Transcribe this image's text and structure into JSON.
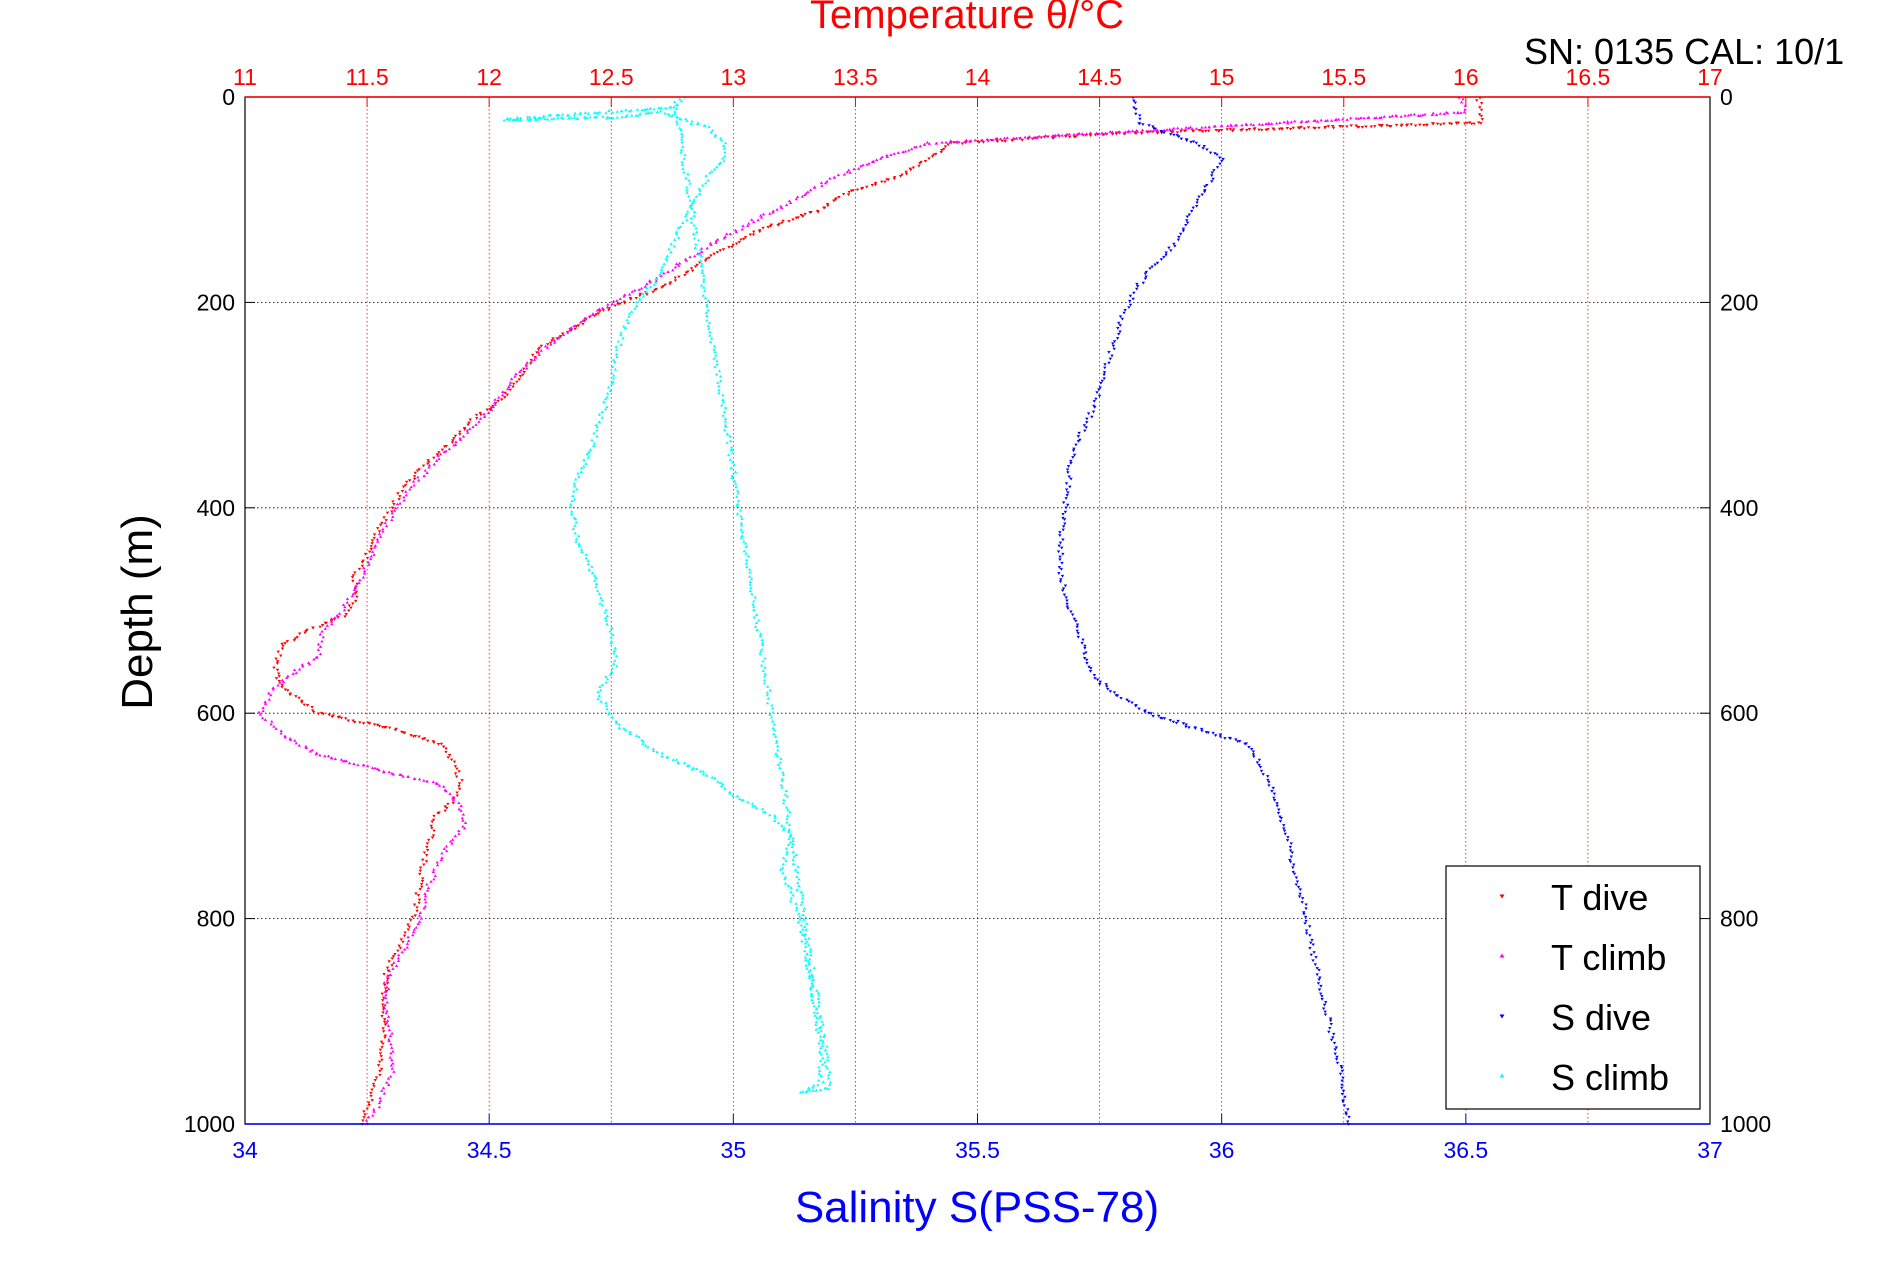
{
  "chart_data": {
    "type": "scatter",
    "title_top_axis": "Temperature θ/°C",
    "top_right_label": "SN: 0135  CAL: 10/1",
    "xlabel_bottom": "Salinity S(PSS-78)",
    "ylabel": "Depth (m)",
    "x_top": {
      "label": "Temperature θ/°C",
      "lim": [
        11,
        17
      ],
      "ticks": [
        "11",
        "11.5",
        "12",
        "12.5",
        "13",
        "13.5",
        "14",
        "14.5",
        "15",
        "15.5",
        "16",
        "16.5",
        "17"
      ]
    },
    "x_bottom": {
      "label": "Salinity S(PSS-78)",
      "lim": [
        34,
        37
      ],
      "ticks": [
        "34",
        "34.5",
        "35",
        "35.5",
        "36",
        "36.5",
        "37"
      ]
    },
    "y": {
      "label": "Depth (m)",
      "lim": [
        0,
        1000
      ],
      "reversed": true,
      "ticks_left": [
        "0",
        "200",
        "400",
        "600",
        "800",
        "1000"
      ],
      "ticks_right": [
        "0",
        "200",
        "400",
        "600",
        "800",
        "1000"
      ]
    },
    "grid": true,
    "legend_position": "bottom-right",
    "series": [
      {
        "name": "T dive",
        "axis": "top",
        "color": "#ff0000",
        "marker": "down-triangle",
        "points": [
          [
            16.05,
            0
          ],
          [
            16.06,
            10
          ],
          [
            16.07,
            25
          ],
          [
            14.6,
            35
          ],
          [
            13.9,
            45
          ],
          [
            13.8,
            60
          ],
          [
            13.7,
            75
          ],
          [
            13.45,
            95
          ],
          [
            13.35,
            110
          ],
          [
            13.1,
            130
          ],
          [
            12.95,
            150
          ],
          [
            12.85,
            165
          ],
          [
            12.75,
            180
          ],
          [
            12.6,
            195
          ],
          [
            12.45,
            210
          ],
          [
            12.35,
            225
          ],
          [
            12.2,
            245
          ],
          [
            12.15,
            265
          ],
          [
            12.1,
            280
          ],
          [
            12.05,
            295
          ],
          [
            11.95,
            310
          ],
          [
            11.85,
            335
          ],
          [
            11.75,
            355
          ],
          [
            11.65,
            380
          ],
          [
            11.6,
            400
          ],
          [
            11.55,
            420
          ],
          [
            11.5,
            445
          ],
          [
            11.45,
            465
          ],
          [
            11.45,
            490
          ],
          [
            11.4,
            505
          ],
          [
            11.25,
            520
          ],
          [
            11.15,
            535
          ],
          [
            11.12,
            555
          ],
          [
            11.15,
            575
          ],
          [
            11.3,
            600
          ],
          [
            11.6,
            615
          ],
          [
            11.8,
            630
          ],
          [
            11.85,
            645
          ],
          [
            11.88,
            665
          ],
          [
            11.86,
            685
          ],
          [
            11.78,
            700
          ],
          [
            11.75,
            730
          ],
          [
            11.72,
            760
          ],
          [
            11.7,
            790
          ],
          [
            11.65,
            820
          ],
          [
            11.58,
            850
          ],
          [
            11.57,
            880
          ],
          [
            11.57,
            910
          ],
          [
            11.56,
            940
          ],
          [
            11.52,
            970
          ],
          [
            11.48,
            1000
          ]
        ]
      },
      {
        "name": "T climb",
        "axis": "top",
        "color": "#ff00ff",
        "marker": "up-triangle",
        "points": [
          [
            15.98,
            0
          ],
          [
            16.0,
            15
          ],
          [
            13.8,
            45
          ],
          [
            13.6,
            60
          ],
          [
            13.4,
            80
          ],
          [
            13.25,
            100
          ],
          [
            13.05,
            125
          ],
          [
            12.9,
            145
          ],
          [
            12.8,
            160
          ],
          [
            12.7,
            175
          ],
          [
            12.55,
            195
          ],
          [
            12.4,
            215
          ],
          [
            12.28,
            235
          ],
          [
            12.18,
            255
          ],
          [
            12.1,
            275
          ],
          [
            12.05,
            290
          ],
          [
            12.0,
            305
          ],
          [
            11.9,
            330
          ],
          [
            11.8,
            350
          ],
          [
            11.7,
            375
          ],
          [
            11.62,
            400
          ],
          [
            11.57,
            420
          ],
          [
            11.52,
            445
          ],
          [
            11.47,
            470
          ],
          [
            11.4,
            500
          ],
          [
            11.32,
            520
          ],
          [
            11.3,
            545
          ],
          [
            11.2,
            560
          ],
          [
            11.12,
            575
          ],
          [
            11.06,
            600
          ],
          [
            11.15,
            620
          ],
          [
            11.3,
            640
          ],
          [
            11.55,
            655
          ],
          [
            11.8,
            670
          ],
          [
            11.88,
            690
          ],
          [
            11.9,
            710
          ],
          [
            11.8,
            740
          ],
          [
            11.75,
            770
          ],
          [
            11.72,
            800
          ],
          [
            11.65,
            830
          ],
          [
            11.58,
            860
          ],
          [
            11.58,
            890
          ],
          [
            11.6,
            920
          ],
          [
            11.6,
            950
          ],
          [
            11.55,
            980
          ],
          [
            11.5,
            1000
          ]
        ]
      },
      {
        "name": "S dive",
        "axis": "bottom",
        "color": "#0000ff",
        "marker": "down-triangle",
        "points": [
          [
            35.82,
            0
          ],
          [
            35.83,
            25
          ],
          [
            35.95,
            45
          ],
          [
            36.0,
            60
          ],
          [
            35.98,
            80
          ],
          [
            35.95,
            100
          ],
          [
            35.93,
            120
          ],
          [
            35.9,
            145
          ],
          [
            35.85,
            170
          ],
          [
            35.82,
            190
          ],
          [
            35.8,
            210
          ],
          [
            35.78,
            240
          ],
          [
            35.76,
            270
          ],
          [
            35.74,
            300
          ],
          [
            35.71,
            330
          ],
          [
            35.69,
            360
          ],
          [
            35.68,
            400
          ],
          [
            35.67,
            430
          ],
          [
            35.67,
            460
          ],
          [
            35.68,
            490
          ],
          [
            35.7,
            510
          ],
          [
            35.72,
            540
          ],
          [
            35.74,
            565
          ],
          [
            35.78,
            580
          ],
          [
            35.85,
            600
          ],
          [
            35.95,
            615
          ],
          [
            36.05,
            630
          ],
          [
            36.08,
            650
          ],
          [
            36.1,
            670
          ],
          [
            36.12,
            700
          ],
          [
            36.14,
            730
          ],
          [
            36.15,
            760
          ],
          [
            36.17,
            790
          ],
          [
            36.18,
            820
          ],
          [
            36.2,
            860
          ],
          [
            36.22,
            900
          ],
          [
            36.24,
            940
          ],
          [
            36.25,
            970
          ],
          [
            36.26,
            1000
          ]
        ]
      },
      {
        "name": "S climb",
        "axis": "bottom",
        "color": "#00ffff",
        "marker": "up-triangle",
        "points": [
          [
            34.9,
            0
          ],
          [
            34.88,
            10
          ],
          [
            34.53,
            22
          ],
          [
            34.75,
            20
          ],
          [
            34.85,
            15
          ],
          [
            34.95,
            30
          ],
          [
            34.98,
            45
          ],
          [
            34.98,
            60
          ],
          [
            34.95,
            75
          ],
          [
            34.92,
            100
          ],
          [
            34.9,
            120
          ],
          [
            34.88,
            140
          ],
          [
            34.86,
            160
          ],
          [
            34.84,
            180
          ],
          [
            34.8,
            200
          ],
          [
            34.78,
            220
          ],
          [
            34.76,
            250
          ],
          [
            34.75,
            280
          ],
          [
            34.73,
            310
          ],
          [
            34.71,
            340
          ],
          [
            34.68,
            370
          ],
          [
            34.67,
            400
          ],
          [
            34.68,
            430
          ],
          [
            34.71,
            460
          ],
          [
            34.73,
            490
          ],
          [
            34.75,
            520
          ],
          [
            34.76,
            555
          ],
          [
            34.72,
            580
          ],
          [
            34.76,
            610
          ],
          [
            34.85,
            640
          ],
          [
            34.95,
            660
          ],
          [
            35.0,
            680
          ],
          [
            35.08,
            700
          ],
          [
            35.12,
            720
          ],
          [
            35.1,
            750
          ],
          [
            35.12,
            780
          ],
          [
            35.14,
            810
          ],
          [
            35.15,
            840
          ],
          [
            35.16,
            870
          ],
          [
            35.17,
            900
          ],
          [
            35.18,
            930
          ],
          [
            35.18,
            960
          ],
          [
            35.14,
            970
          ],
          [
            35.2,
            965
          ],
          [
            34.88,
            5
          ]
        ]
      }
    ]
  }
}
